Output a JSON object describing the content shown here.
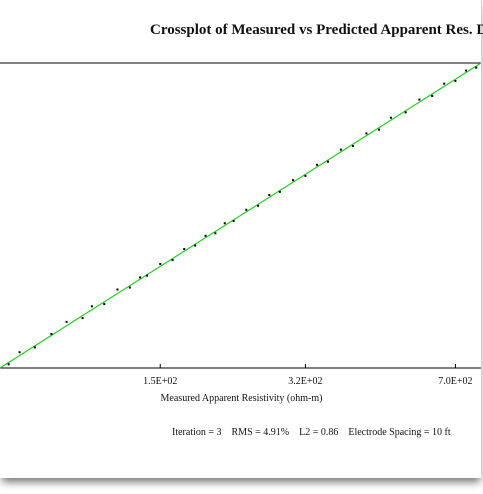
{
  "chart_data": {
    "type": "scatter",
    "title": "Crossplot of Measured vs Predicted Apparent Res. Data",
    "xlabel": "Measured Apparent Resistivity (ohm-m)",
    "ylabel": "",
    "x_scale": "log",
    "y_scale": "log",
    "xlim": [
      65,
      800
    ],
    "ylim": [
      65,
      800
    ],
    "x_ticks": [
      150,
      320,
      700
    ],
    "x_tick_labels": [
      "1.5E+02",
      "3.2E+02",
      "7.0E+02"
    ],
    "grid": false,
    "legend": "none",
    "series": [
      {
        "kind": "points",
        "color": "#000000",
        "x": [
          68,
          72,
          78,
          85,
          92,
          100,
          105,
          112,
          120,
          128,
          135,
          140,
          150,
          160,
          170,
          180,
          190,
          200,
          210,
          220,
          235,
          250,
          265,
          280,
          300,
          320,
          340,
          360,
          385,
          410,
          440,
          470,
          500,
          540,
          580,
          620,
          660,
          700,
          740,
          780
        ],
        "y": [
          67,
          74,
          77,
          86,
          95,
          98,
          108,
          110,
          124,
          126,
          137,
          139,
          153,
          158,
          173,
          178,
          193,
          197,
          214,
          218,
          239,
          247,
          270,
          277,
          305,
          316,
          346,
          355,
          392,
          404,
          448,
          462,
          510,
          533,
          592,
          610,
          675,
          690,
          752,
          770
        ]
      },
      {
        "kind": "fit-line",
        "color": "#22cc22",
        "x": [
          65,
          800
        ],
        "y": [
          65,
          800
        ]
      }
    ]
  },
  "stats": {
    "iteration": "Iteration = 3",
    "rms": "RMS = 4.91%",
    "l2": "L2 = 0.86",
    "spacing": "Electrode Spacing = 10 ft"
  }
}
